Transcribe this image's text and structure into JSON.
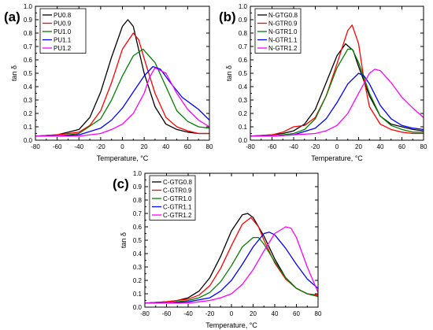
{
  "chart_data": [
    {
      "panel_label": "(a)",
      "type": "line",
      "xlabel": "Temperature, °C",
      "ylabel": "tan δ",
      "xlim": [
        -80,
        80
      ],
      "ylim": [
        0.0,
        1.0
      ],
      "xticks": [
        -80,
        -60,
        -40,
        -20,
        0,
        20,
        40,
        60,
        80
      ],
      "yticks": [
        0.0,
        0.1,
        0.2,
        0.3,
        0.4,
        0.5,
        0.6,
        0.7,
        0.8,
        0.9,
        1.0
      ],
      "grid": false,
      "legend_position": "top-left",
      "series": [
        {
          "name": "PU0.8",
          "color": "#000000",
          "x": [
            -80,
            -60,
            -40,
            -30,
            -20,
            -10,
            0,
            5,
            10,
            20,
            30,
            40,
            50,
            60,
            70,
            80
          ],
          "y": [
            0.03,
            0.04,
            0.08,
            0.17,
            0.36,
            0.62,
            0.85,
            0.9,
            0.85,
            0.5,
            0.25,
            0.12,
            0.08,
            0.06,
            0.05,
            0.05
          ]
        },
        {
          "name": "PU0.9",
          "color": "#ff0000",
          "x": [
            -80,
            -60,
            -40,
            -30,
            -20,
            -10,
            0,
            10,
            15,
            20,
            30,
            40,
            50,
            60,
            70,
            80
          ],
          "y": [
            0.03,
            0.04,
            0.06,
            0.11,
            0.22,
            0.43,
            0.68,
            0.8,
            0.75,
            0.61,
            0.35,
            0.17,
            0.1,
            0.07,
            0.05,
            0.05
          ]
        },
        {
          "name": "PU1.0",
          "color": "#008000",
          "x": [
            -80,
            -60,
            -40,
            -20,
            -10,
            0,
            10,
            19,
            30,
            40,
            50,
            60,
            70,
            80
          ],
          "y": [
            0.03,
            0.03,
            0.05,
            0.16,
            0.3,
            0.48,
            0.63,
            0.68,
            0.58,
            0.4,
            0.22,
            0.14,
            0.1,
            0.09
          ]
        },
        {
          "name": "PU1.1",
          "color": "#0000ff",
          "x": [
            -80,
            -60,
            -40,
            -20,
            -10,
            0,
            10,
            20,
            28,
            35,
            45,
            55,
            65,
            70,
            80
          ],
          "y": [
            0.03,
            0.03,
            0.04,
            0.09,
            0.15,
            0.24,
            0.36,
            0.48,
            0.55,
            0.53,
            0.42,
            0.32,
            0.26,
            0.23,
            0.15
          ]
        },
        {
          "name": "PU1.2",
          "color": "#ff00ff",
          "x": [
            -80,
            -60,
            -40,
            -20,
            -10,
            0,
            10,
            20,
            25,
            30,
            40,
            50,
            60,
            70,
            80
          ],
          "y": [
            0.03,
            0.03,
            0.03,
            0.05,
            0.08,
            0.12,
            0.2,
            0.35,
            0.47,
            0.54,
            0.5,
            0.35,
            0.23,
            0.15,
            0.1
          ]
        }
      ]
    },
    {
      "panel_label": "(b)",
      "type": "line",
      "xlabel": "Temperature, °C",
      "ylabel": "tan δ",
      "xlim": [
        -80,
        80
      ],
      "ylim": [
        0.0,
        1.0
      ],
      "xticks": [
        -80,
        -60,
        -40,
        -20,
        0,
        20,
        40,
        60,
        80
      ],
      "yticks": [
        0.0,
        0.1,
        0.2,
        0.3,
        0.4,
        0.5,
        0.6,
        0.7,
        0.8,
        0.9,
        1.0
      ],
      "grid": false,
      "legend_position": "top-left",
      "series": [
        {
          "name": "N-GTG0.8",
          "color": "#000000",
          "x": [
            -80,
            -60,
            -50,
            -40,
            -30,
            -20,
            -10,
            0,
            8,
            15,
            20,
            30,
            40,
            50,
            60,
            70,
            80
          ],
          "y": [
            0.03,
            0.04,
            0.05,
            0.07,
            0.12,
            0.23,
            0.43,
            0.63,
            0.72,
            0.67,
            0.55,
            0.33,
            0.18,
            0.12,
            0.1,
            0.08,
            0.07
          ]
        },
        {
          "name": "N-GTR0.9",
          "color": "#ff0000",
          "x": [
            -80,
            -60,
            -50,
            -40,
            -30,
            -20,
            -10,
            0,
            10,
            14,
            20,
            25,
            30,
            40,
            50,
            60,
            70,
            80
          ],
          "y": [
            0.03,
            0.04,
            0.06,
            0.1,
            0.11,
            0.17,
            0.33,
            0.57,
            0.82,
            0.86,
            0.72,
            0.45,
            0.25,
            0.12,
            0.08,
            0.06,
            0.05,
            0.05
          ]
        },
        {
          "name": "N-GTR1.0",
          "color": "#008000",
          "x": [
            -80,
            -60,
            -40,
            -30,
            -20,
            -10,
            0,
            10,
            14,
            20,
            30,
            40,
            50,
            60,
            70,
            80
          ],
          "y": [
            0.03,
            0.03,
            0.05,
            0.08,
            0.16,
            0.33,
            0.54,
            0.68,
            0.68,
            0.58,
            0.35,
            0.18,
            0.11,
            0.08,
            0.06,
            0.06
          ]
        },
        {
          "name": "N-GTR1.1",
          "color": "#0000ff",
          "x": [
            -80,
            -60,
            -40,
            -20,
            -10,
            0,
            10,
            20,
            25,
            30,
            40,
            50,
            60,
            70,
            80
          ],
          "y": [
            0.03,
            0.03,
            0.04,
            0.09,
            0.16,
            0.28,
            0.42,
            0.5,
            0.48,
            0.42,
            0.26,
            0.16,
            0.11,
            0.09,
            0.08
          ]
        },
        {
          "name": "N-GTR1.2",
          "color": "#ff00ff",
          "x": [
            -80,
            -60,
            -40,
            -20,
            -10,
            0,
            10,
            20,
            30,
            35,
            40,
            50,
            60,
            70,
            80
          ],
          "y": [
            0.03,
            0.03,
            0.04,
            0.05,
            0.07,
            0.11,
            0.2,
            0.35,
            0.5,
            0.53,
            0.52,
            0.43,
            0.32,
            0.24,
            0.17
          ]
        }
      ]
    },
    {
      "panel_label": "(c)",
      "type": "line",
      "xlabel": "Temperature, °C",
      "ylabel": "tan δ",
      "xlim": [
        -80,
        80
      ],
      "ylim": [
        0.0,
        1.0
      ],
      "xticks": [
        -80,
        -60,
        -40,
        -20,
        0,
        20,
        40,
        60,
        80
      ],
      "yticks": [
        0.0,
        0.1,
        0.2,
        0.3,
        0.4,
        0.5,
        0.6,
        0.7,
        0.8,
        0.9,
        1.0
      ],
      "grid": false,
      "legend_position": "top-left",
      "series": [
        {
          "name": "C-GTG0.8",
          "color": "#000000",
          "x": [
            -80,
            -60,
            -50,
            -40,
            -30,
            -20,
            -10,
            0,
            10,
            15,
            20,
            30,
            40,
            50,
            60,
            70,
            80
          ],
          "y": [
            0.03,
            0.04,
            0.05,
            0.07,
            0.12,
            0.22,
            0.38,
            0.57,
            0.69,
            0.7,
            0.67,
            0.53,
            0.36,
            0.22,
            0.14,
            0.1,
            0.08
          ]
        },
        {
          "name": "C-GTR0.9",
          "color": "#ff0000",
          "x": [
            -80,
            -60,
            -50,
            -40,
            -30,
            -20,
            -10,
            0,
            10,
            18,
            25,
            30,
            40,
            50,
            60,
            70,
            80
          ],
          "y": [
            0.03,
            0.04,
            0.05,
            0.06,
            0.09,
            0.16,
            0.29,
            0.46,
            0.62,
            0.67,
            0.6,
            0.5,
            0.33,
            0.21,
            0.14,
            0.1,
            0.09
          ]
        },
        {
          "name": "C-GTR1.0",
          "color": "#008000",
          "x": [
            -80,
            -60,
            -40,
            -30,
            -20,
            -10,
            0,
            10,
            20,
            25,
            30,
            40,
            50,
            60,
            70,
            80
          ],
          "y": [
            0.03,
            0.03,
            0.05,
            0.07,
            0.11,
            0.19,
            0.31,
            0.45,
            0.52,
            0.52,
            0.47,
            0.34,
            0.22,
            0.14,
            0.1,
            0.08
          ]
        },
        {
          "name": "C-GTR1.1",
          "color": "#0000ff",
          "x": [
            -80,
            -60,
            -40,
            -20,
            -10,
            0,
            10,
            20,
            30,
            35,
            40,
            50,
            60,
            70,
            80
          ],
          "y": [
            0.03,
            0.03,
            0.04,
            0.07,
            0.12,
            0.2,
            0.32,
            0.45,
            0.55,
            0.56,
            0.54,
            0.44,
            0.32,
            0.21,
            0.14
          ]
        },
        {
          "name": "C-GTR1.2",
          "color": "#ff00ff",
          "x": [
            -80,
            -60,
            -40,
            -20,
            -10,
            0,
            10,
            20,
            30,
            40,
            50,
            55,
            60,
            70,
            80
          ],
          "y": [
            0.03,
            0.03,
            0.03,
            0.05,
            0.07,
            0.1,
            0.17,
            0.28,
            0.42,
            0.55,
            0.6,
            0.59,
            0.52,
            0.3,
            0.11
          ]
        }
      ]
    }
  ]
}
